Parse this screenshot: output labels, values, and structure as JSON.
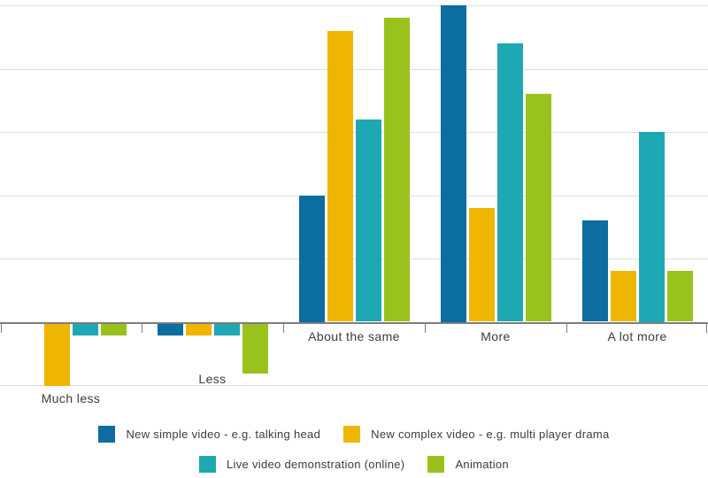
{
  "chart_data": {
    "type": "bar",
    "title": "",
    "xlabel": "",
    "ylabel": "",
    "categories": [
      "Much less",
      "Less",
      "About the same",
      "More",
      "A lot more"
    ],
    "series": [
      {
        "name": "New simple video - e.g. talking head",
        "color": "#0c6da1",
        "values": [
          0,
          -2,
          20,
          50,
          16
        ]
      },
      {
        "name": "New complex video - e.g. multi player drama",
        "color": "#eeb600",
        "values": [
          -10,
          -2,
          46,
          18,
          8
        ]
      },
      {
        "name": "Live video demonstration (online)",
        "color": "#1ea8b4",
        "values": [
          -2,
          -2,
          32,
          44,
          30
        ]
      },
      {
        "name": "Animation",
        "color": "#9ac21d",
        "values": [
          -2,
          -8,
          48,
          36,
          8
        ]
      }
    ],
    "ylim": [
      -12,
      52
    ],
    "gridline_values": [
      50,
      40,
      30,
      20,
      10,
      -10
    ],
    "grid": true,
    "y_tick_labels_visible": false,
    "legend_position": "bottom",
    "legend_rows": [
      [
        0,
        1
      ],
      [
        2,
        3
      ]
    ],
    "colors": {
      "axis": "#7d7d7d",
      "gridline": "#dedede",
      "label_text": "#3c3c3c",
      "background": "#ffffff"
    }
  }
}
